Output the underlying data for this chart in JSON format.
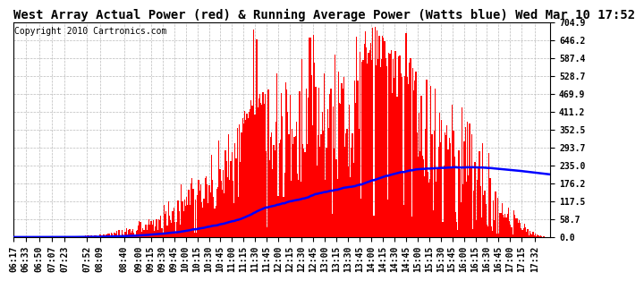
{
  "title": "West Array Actual Power (red) & Running Average Power (Watts blue) Wed Mar 10 17:52",
  "copyright": "Copyright 2010 Cartronics.com",
  "ylabel_right_values": [
    704.9,
    646.2,
    587.4,
    528.7,
    469.9,
    411.2,
    352.5,
    293.7,
    235.0,
    176.2,
    117.5,
    58.7,
    0.0
  ],
  "ymax": 704.9,
  "ymin": 0.0,
  "bar_color": "#FF0000",
  "line_color": "#0000FF",
  "background_color": "#FFFFFF",
  "grid_color": "#BBBBBB",
  "title_fontsize": 10,
  "copyright_fontsize": 7,
  "tick_fontsize": 7,
  "x_tick_labels": [
    "06:17",
    "06:33",
    "06:50",
    "07:07",
    "07:23",
    "07:52",
    "08:09",
    "08:40",
    "09:00",
    "09:15",
    "09:30",
    "09:45",
    "10:00",
    "10:15",
    "10:30",
    "10:45",
    "11:00",
    "11:15",
    "11:30",
    "11:45",
    "12:00",
    "12:15",
    "12:30",
    "12:45",
    "13:00",
    "13:15",
    "13:30",
    "13:45",
    "14:00",
    "14:15",
    "14:30",
    "14:45",
    "15:00",
    "15:15",
    "15:30",
    "15:45",
    "16:00",
    "16:15",
    "16:30",
    "16:45",
    "17:00",
    "17:15",
    "17:32"
  ]
}
